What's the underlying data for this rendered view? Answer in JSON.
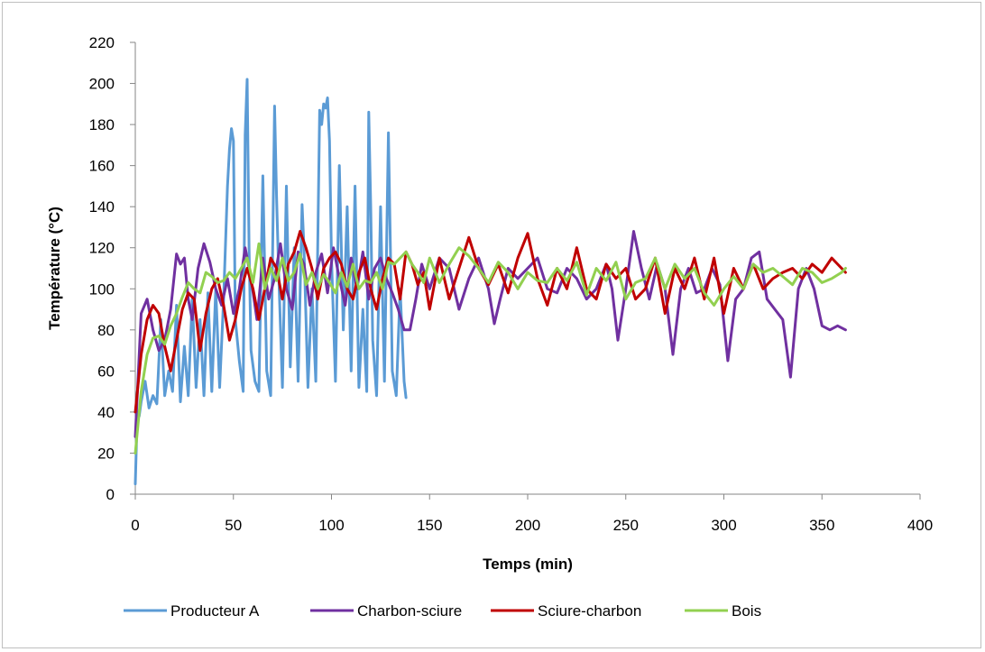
{
  "chart_data": {
    "type": "line",
    "title": "",
    "xlabel": "Temps (min)",
    "ylabel": "Température (°C)",
    "xlim": [
      0,
      400
    ],
    "ylim": [
      0,
      220
    ],
    "xticks": [
      0,
      50,
      100,
      150,
      200,
      250,
      300,
      350,
      400
    ],
    "yticks": [
      0,
      20,
      40,
      60,
      80,
      100,
      120,
      140,
      160,
      180,
      200,
      220
    ],
    "grid": false,
    "legend": "bottom",
    "series": [
      {
        "name": "Producteur A",
        "color": "#5b9bd5",
        "x": [
          0,
          1,
          2,
          3,
          5,
          7,
          9,
          11,
          13,
          15,
          17,
          19,
          21,
          23,
          25,
          27,
          29,
          31,
          33,
          35,
          37,
          39,
          41,
          43,
          45,
          47,
          48,
          49,
          50,
          51,
          53,
          55,
          56,
          57,
          58,
          59,
          61,
          63,
          65,
          67,
          69,
          71,
          72,
          73,
          75,
          77,
          79,
          81,
          83,
          85,
          86,
          88,
          90,
          92,
          94,
          95,
          96,
          97,
          98,
          99,
          100,
          102,
          104,
          106,
          108,
          110,
          112,
          114,
          116,
          118,
          119,
          120,
          121,
          123,
          125,
          127,
          129,
          130,
          131,
          133,
          135,
          137,
          138
        ],
        "y": [
          5,
          40,
          38,
          45,
          55,
          42,
          48,
          44,
          85,
          48,
          60,
          50,
          92,
          45,
          72,
          48,
          95,
          52,
          85,
          48,
          98,
          50,
          100,
          52,
          95,
          150,
          168,
          178,
          172,
          85,
          65,
          50,
          175,
          202,
          120,
          70,
          55,
          50,
          155,
          60,
          48,
          189,
          145,
          110,
          52,
          150,
          62,
          120,
          55,
          141,
          120,
          52,
          100,
          55,
          187,
          180,
          190,
          188,
          193,
          172,
          115,
          55,
          160,
          80,
          140,
          60,
          150,
          52,
          90,
          50,
          186,
          140,
          75,
          48,
          140,
          55,
          176,
          120,
          60,
          48,
          100,
          55,
          47
        ]
      },
      {
        "name": "Charbon-sciure",
        "color": "#7030a0",
        "x": [
          0,
          3,
          6,
          9,
          12,
          15,
          18,
          21,
          23,
          25,
          27,
          29,
          32,
          35,
          38,
          41,
          44,
          47,
          50,
          53,
          56,
          59,
          62,
          65,
          68,
          71,
          74,
          77,
          80,
          83,
          86,
          89,
          92,
          95,
          98,
          101,
          104,
          107,
          110,
          113,
          116,
          119,
          122,
          125,
          128,
          131,
          134,
          137,
          140,
          143,
          146,
          150,
          155,
          160,
          165,
          170,
          175,
          180,
          183,
          186,
          190,
          195,
          200,
          205,
          210,
          215,
          220,
          225,
          230,
          235,
          240,
          243,
          246,
          250,
          254,
          258,
          262,
          266,
          270,
          274,
          278,
          282,
          286,
          290,
          294,
          298,
          302,
          306,
          310,
          314,
          318,
          322,
          326,
          330,
          334,
          338,
          342,
          346,
          350,
          354,
          358,
          362
        ],
        "y": [
          28,
          88,
          95,
          80,
          70,
          75,
          90,
          117,
          112,
          115,
          95,
          85,
          110,
          122,
          113,
          100,
          92,
          105,
          88,
          100,
          120,
          105,
          85,
          115,
          95,
          105,
          122,
          100,
          90,
          118,
          112,
          92,
          108,
          117,
          98,
          120,
          105,
          92,
          115,
          100,
          118,
          95,
          110,
          115,
          105,
          98,
          90,
          80,
          80,
          95,
          112,
          100,
          115,
          110,
          90,
          105,
          115,
          100,
          83,
          95,
          110,
          105,
          110,
          115,
          100,
          98,
          110,
          105,
          95,
          100,
          112,
          100,
          75,
          100,
          128,
          110,
          95,
          112,
          100,
          68,
          100,
          110,
          98,
          100,
          110,
          102,
          65,
          95,
          100,
          115,
          118,
          95,
          90,
          85,
          57,
          100,
          110,
          100,
          82,
          80,
          82,
          80
        ]
      },
      {
        "name": "Sciure-charbon",
        "color": "#c00000",
        "x": [
          0,
          3,
          6,
          9,
          12,
          15,
          18,
          21,
          24,
          27,
          30,
          33,
          36,
          39,
          42,
          45,
          48,
          51,
          54,
          57,
          60,
          63,
          66,
          69,
          72,
          75,
          78,
          81,
          84,
          87,
          90,
          93,
          96,
          99,
          102,
          105,
          108,
          111,
          114,
          117,
          120,
          123,
          126,
          129,
          132,
          135,
          138,
          141,
          144,
          147,
          150,
          155,
          160,
          165,
          170,
          175,
          180,
          185,
          190,
          195,
          200,
          205,
          210,
          215,
          220,
          225,
          230,
          235,
          240,
          245,
          250,
          255,
          260,
          265,
          270,
          275,
          280,
          285,
          290,
          295,
          300,
          305,
          310,
          315,
          320,
          325,
          330,
          335,
          340,
          345,
          350,
          355,
          360,
          362
        ],
        "y": [
          40,
          68,
          85,
          92,
          88,
          72,
          60,
          75,
          90,
          98,
          95,
          70,
          88,
          100,
          105,
          92,
          75,
          85,
          100,
          110,
          100,
          85,
          100,
          115,
          110,
          95,
          112,
          118,
          128,
          120,
          110,
          95,
          110,
          115,
          118,
          112,
          100,
          95,
          108,
          115,
          100,
          90,
          105,
          115,
          112,
          95,
          118,
          112,
          102,
          108,
          90,
          115,
          95,
          110,
          125,
          110,
          102,
          112,
          98,
          115,
          127,
          105,
          92,
          110,
          100,
          120,
          100,
          95,
          112,
          105,
          110,
          95,
          100,
          115,
          88,
          110,
          100,
          115,
          95,
          115,
          88,
          110,
          100,
          112,
          100,
          105,
          108,
          110,
          105,
          112,
          108,
          115,
          110,
          108
        ]
      },
      {
        "name": "Bois",
        "color": "#92d050",
        "x": [
          0,
          3,
          6,
          9,
          12,
          15,
          18,
          21,
          24,
          27,
          30,
          33,
          36,
          39,
          42,
          45,
          48,
          51,
          54,
          57,
          60,
          63,
          66,
          69,
          72,
          75,
          78,
          81,
          84,
          87,
          90,
          93,
          96,
          99,
          102,
          105,
          108,
          111,
          114,
          117,
          120,
          123,
          126,
          129,
          132,
          135,
          138,
          141,
          144,
          147,
          150,
          155,
          160,
          165,
          170,
          175,
          180,
          185,
          190,
          195,
          200,
          205,
          210,
          215,
          220,
          225,
          230,
          235,
          240,
          245,
          250,
          255,
          260,
          265,
          270,
          275,
          280,
          285,
          290,
          295,
          300,
          305,
          310,
          315,
          320,
          325,
          330,
          335,
          340,
          345,
          350,
          355,
          360,
          362
        ],
        "y": [
          20,
          50,
          68,
          76,
          77,
          73,
          82,
          88,
          96,
          103,
          100,
          98,
          108,
          106,
          103,
          104,
          108,
          105,
          110,
          115,
          103,
          122,
          100,
          110,
          104,
          115,
          104,
          108,
          117,
          102,
          108,
          100,
          107,
          103,
          98,
          108,
          101,
          112,
          100,
          104,
          103,
          108,
          100,
          113,
          112,
          115,
          118,
          112,
          108,
          103,
          115,
          103,
          112,
          120,
          116,
          110,
          103,
          113,
          108,
          100,
          108,
          104,
          103,
          110,
          104,
          113,
          97,
          110,
          104,
          113,
          95,
          103,
          105,
          115,
          100,
          112,
          105,
          110,
          98,
          92,
          100,
          106,
          100,
          112,
          108,
          110,
          106,
          102,
          110,
          108,
          103,
          105,
          108,
          110
        ]
      }
    ]
  }
}
